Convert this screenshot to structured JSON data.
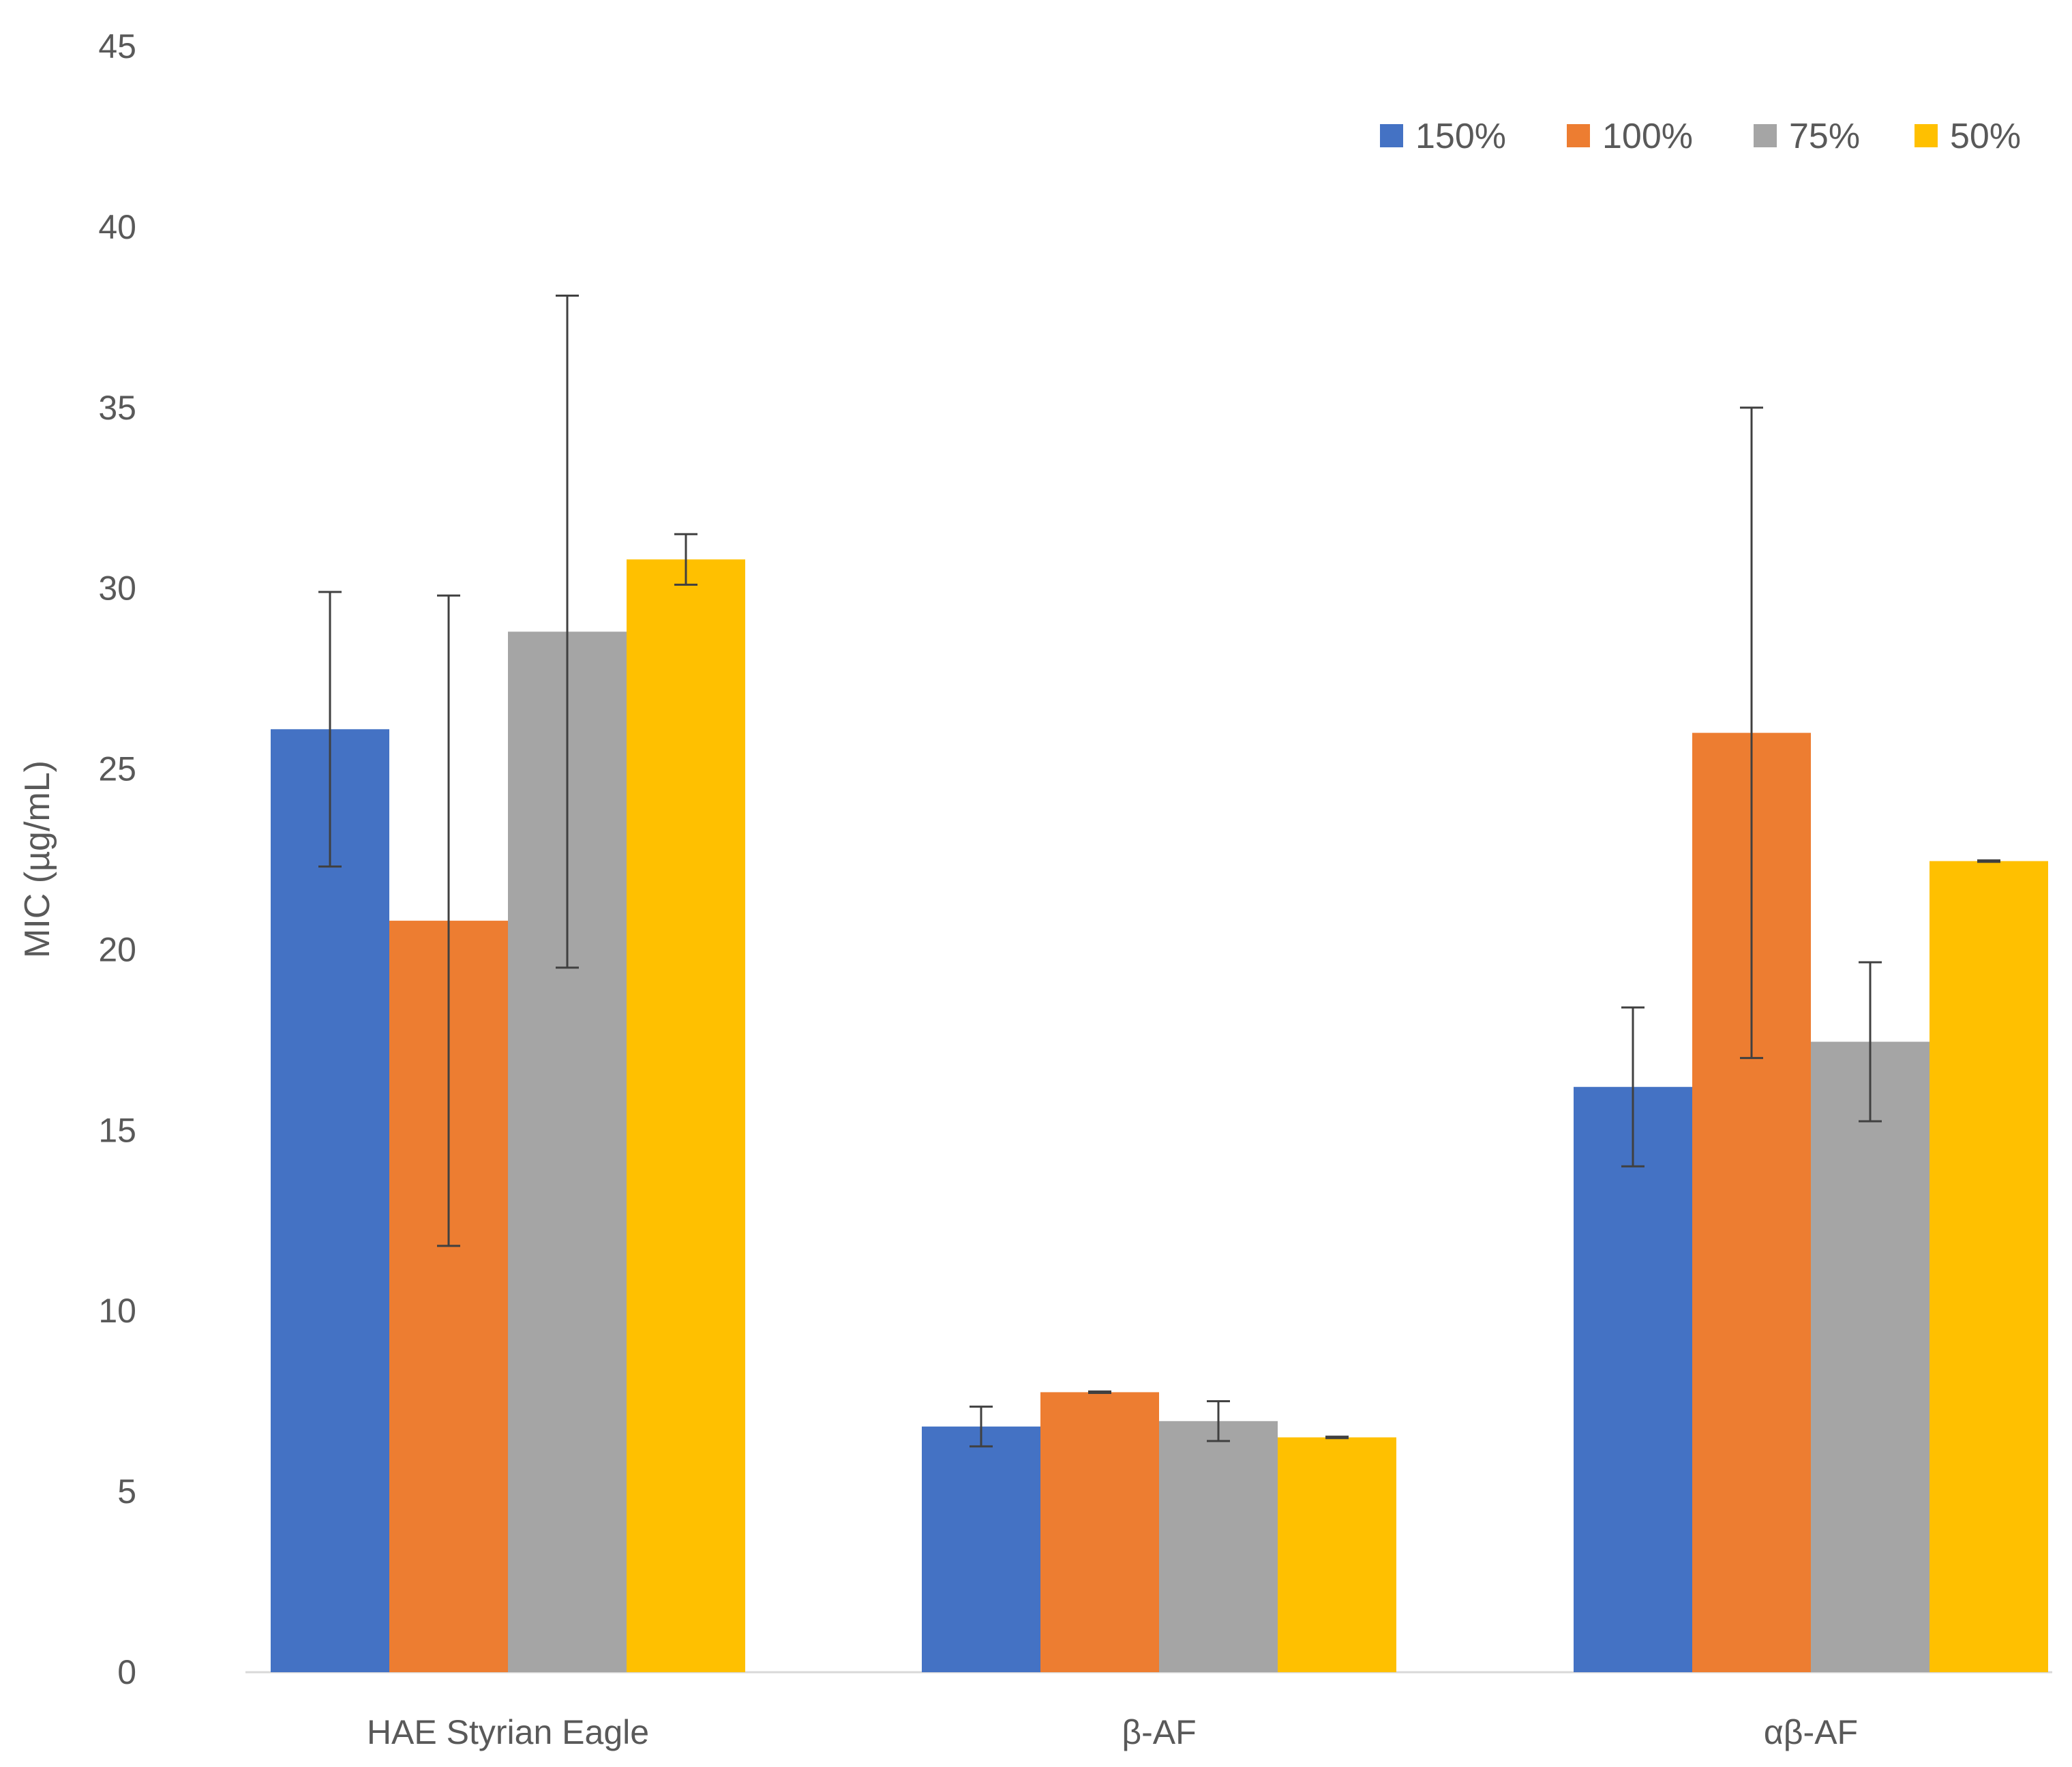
{
  "chart_data": {
    "type": "bar",
    "title": "",
    "xlabel": "",
    "ylabel": "MIC (µg/mL)",
    "ylim": [
      0,
      45
    ],
    "yticks": [
      0,
      5,
      10,
      15,
      20,
      25,
      30,
      35,
      40,
      45
    ],
    "grid": false,
    "legend_position": "top-right",
    "categories": [
      "HAE Styrian Eagle",
      "β-AF",
      "αβ-AF"
    ],
    "series": [
      {
        "name": "150%",
        "color": "#4472c4",
        "values": [
          26.1,
          6.8,
          16.2
        ],
        "errors": [
          3.8,
          0.55,
          2.2
        ]
      },
      {
        "name": "100%",
        "color": "#ed7d31",
        "values": [
          20.8,
          7.75,
          26.0
        ],
        "errors": [
          9.0,
          0.02,
          9.0
        ]
      },
      {
        "name": "75%",
        "color": "#a5a5a5",
        "values": [
          28.8,
          6.95,
          17.45
        ],
        "errors": [
          9.3,
          0.55,
          2.2
        ]
      },
      {
        "name": "50%",
        "color": "#ffc000",
        "values": [
          30.8,
          6.5,
          22.45
        ],
        "errors": [
          0.7,
          0.02,
          0.02
        ]
      }
    ]
  }
}
